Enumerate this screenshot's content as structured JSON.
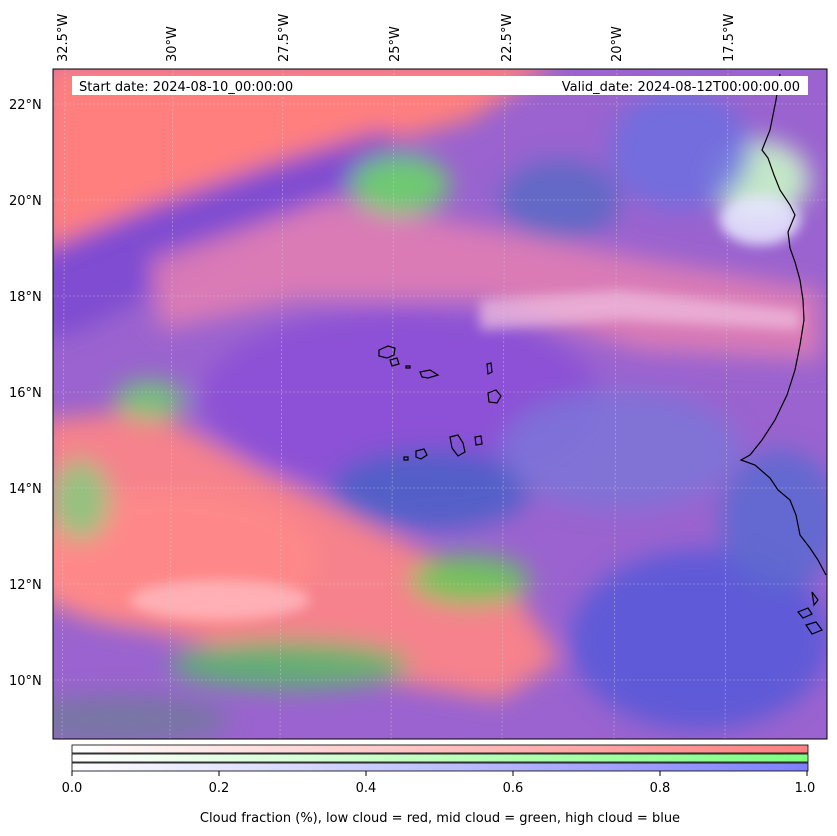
{
  "header": {
    "start_date": "Start date: 2024-08-10_00:00:00",
    "valid_date": "Valid_date: 2024-08-12T00:00:00.00"
  },
  "longitude_labels": [
    "32.5°W",
    "30°W",
    "27.5°W",
    "25°W",
    "22.5°W",
    "20°W",
    "17.5°W"
  ],
  "latitude_labels": [
    "22°N",
    "20°N",
    "18°N",
    "16°N",
    "14°N",
    "12°N",
    "10°N"
  ],
  "colorbar": {
    "ticks": [
      "0.0",
      "0.2",
      "0.4",
      "0.6",
      "0.8",
      "1.0"
    ],
    "label": "Cloud fraction (%), low cloud = red, mid cloud = green, high cloud = blue",
    "colors": {
      "low": "#ff7f7f",
      "mid": "#7fff7f",
      "high": "#7f7fff"
    }
  },
  "colors": {
    "low_cloud": "#ff7f7f",
    "mid_cloud": "#66dd66",
    "high_cloud": "#6a4fd8",
    "coastline": "#000000",
    "gridline": "#bbbbbb"
  }
}
